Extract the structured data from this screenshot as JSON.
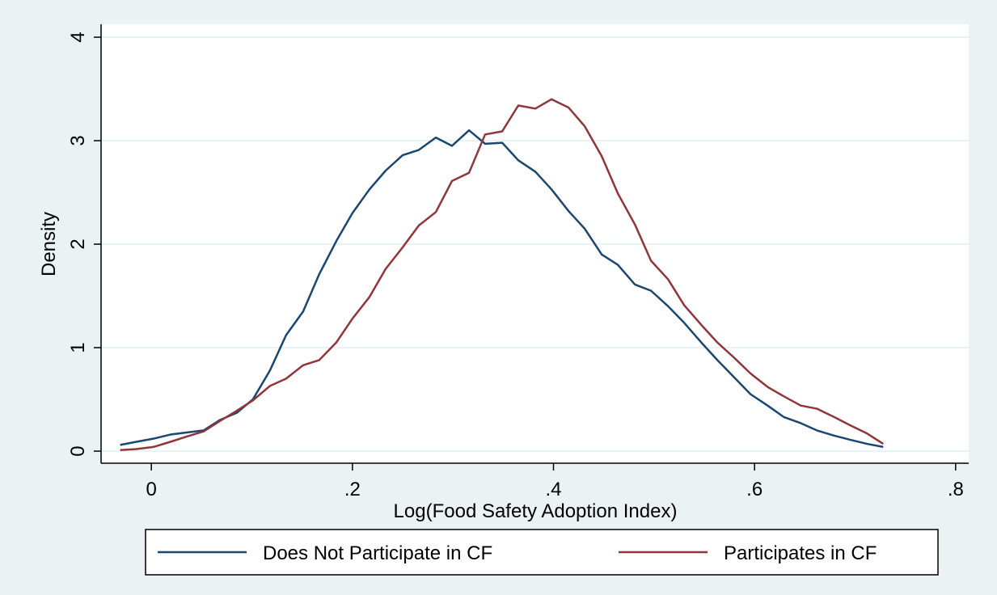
{
  "chart_data": {
    "type": "line",
    "xlabel": "Log(Food Safety Adoption Index)",
    "ylabel": "Density",
    "x": [
      -0.031,
      -0.015,
      0.002,
      0.019,
      0.035,
      0.052,
      0.068,
      0.085,
      0.101,
      0.118,
      0.134,
      0.151,
      0.167,
      0.184,
      0.2,
      0.217,
      0.233,
      0.25,
      0.266,
      0.283,
      0.299,
      0.316,
      0.332,
      0.349,
      0.365,
      0.382,
      0.398,
      0.415,
      0.431,
      0.448,
      0.464,
      0.481,
      0.497,
      0.514,
      0.53,
      0.547,
      0.563,
      0.58,
      0.596,
      0.613,
      0.629,
      0.646,
      0.662,
      0.679,
      0.695,
      0.712,
      0.728
    ],
    "series": [
      {
        "name": "Does Not Participate in CF",
        "color": "#1a476f",
        "values": [
          0.06,
          0.09,
          0.12,
          0.16,
          0.18,
          0.2,
          0.3,
          0.37,
          0.5,
          0.78,
          1.12,
          1.35,
          1.71,
          2.03,
          2.3,
          2.53,
          2.71,
          2.86,
          2.91,
          3.03,
          2.95,
          3.1,
          2.97,
          2.98,
          2.81,
          2.7,
          2.53,
          2.32,
          2.15,
          1.9,
          1.8,
          1.61,
          1.55,
          1.4,
          1.24,
          1.05,
          0.88,
          0.71,
          0.55,
          0.44,
          0.33,
          0.27,
          0.2,
          0.15,
          0.11,
          0.07,
          0.04
        ]
      },
      {
        "name": "Participates in CF",
        "color": "#90353b",
        "values": [
          0.01,
          0.02,
          0.04,
          0.09,
          0.14,
          0.19,
          0.29,
          0.39,
          0.49,
          0.63,
          0.7,
          0.83,
          0.88,
          1.05,
          1.28,
          1.49,
          1.76,
          1.97,
          2.18,
          2.31,
          2.61,
          2.69,
          3.06,
          3.09,
          3.34,
          3.31,
          3.4,
          3.32,
          3.14,
          2.85,
          2.49,
          2.19,
          1.84,
          1.66,
          1.41,
          1.22,
          1.05,
          0.9,
          0.75,
          0.62,
          0.53,
          0.44,
          0.41,
          0.33,
          0.25,
          0.17,
          0.07
        ]
      }
    ],
    "xlim": [
      -0.05,
      0.813
    ],
    "xticks": [
      0,
      {
        "value": 0.2,
        "label": ".2"
      },
      {
        "value": 0.4,
        "label": ".4"
      },
      {
        "value": 0.6,
        "label": ".6"
      },
      {
        "value": 0.8,
        "label": ".8"
      }
    ],
    "ylim": [
      -0.117,
      4.125
    ],
    "yticks": [
      0,
      1,
      2,
      3,
      4
    ],
    "grid": true,
    "legend": "bottom"
  }
}
